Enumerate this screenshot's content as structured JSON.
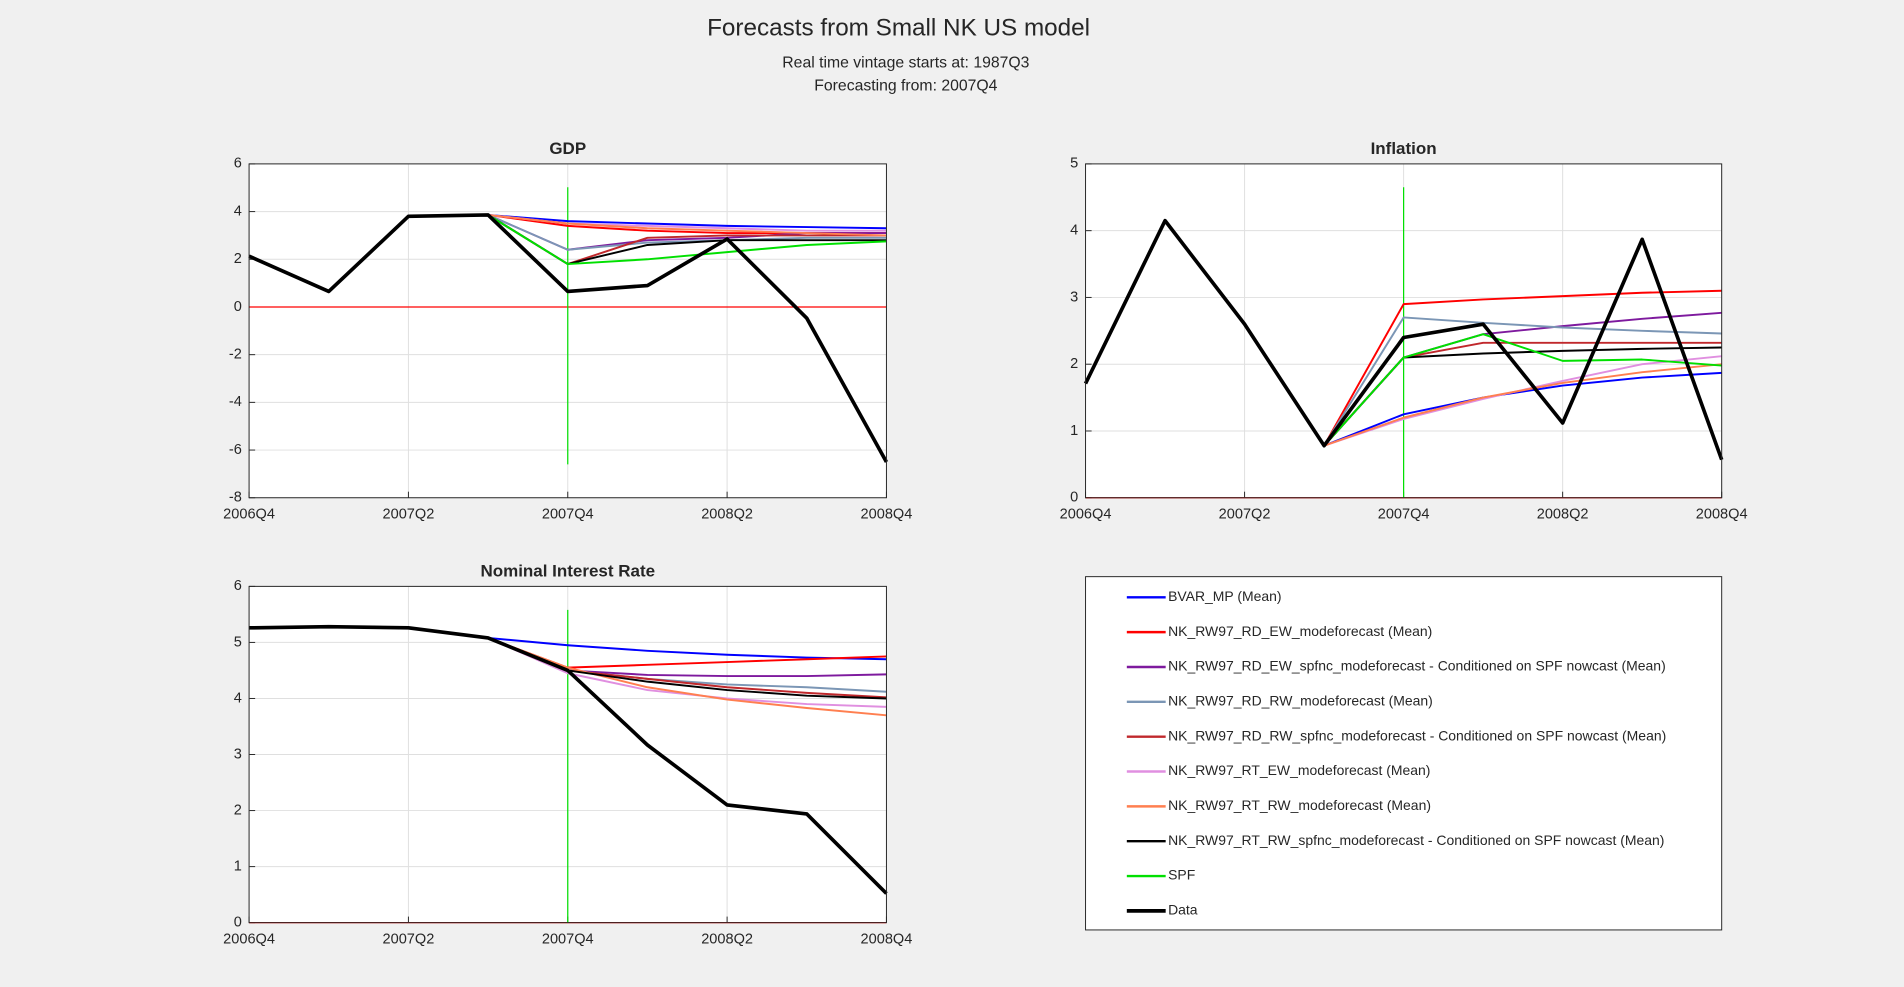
{
  "title": "Forecasts from Small NK US model",
  "subtitle": [
    "Real time vintage starts at: 1987Q3",
    "Forecasting from: 2007Q4"
  ],
  "legend": [
    {
      "name": "BVAR_MP (Mean)",
      "color": "#0000ff"
    },
    {
      "name": "NK_RW97_RD_EW_modeforecast (Mean)",
      "color": "#ff0000"
    },
    {
      "name": "NK_RW97_RD_EW_spfnc_modeforecast - Conditioned on SPF nowcast (Mean)",
      "color": "#7e1a9e"
    },
    {
      "name": "NK_RW97_RD_RW_modeforecast (Mean)",
      "color": "#7b96b5"
    },
    {
      "name": "NK_RW97_RD_RW_spfnc_modeforecast - Conditioned on SPF nowcast (Mean)",
      "color": "#c0282c"
    },
    {
      "name": "NK_RW97_RT_EW_modeforecast (Mean)",
      "color": "#e08fe0"
    },
    {
      "name": "NK_RW97_RT_RW_modeforecast (Mean)",
      "color": "#ff7f50"
    },
    {
      "name": "NK_RW97_RT_RW_spfnc_modeforecast - Conditioned on SPF nowcast (Mean)",
      "color": "#000000"
    },
    {
      "name": "SPF",
      "color": "#00e000"
    },
    {
      "name": "Data",
      "color": "#000000"
    }
  ],
  "chart_data": [
    {
      "type": "line",
      "title": "GDP",
      "categories": [
        "2006Q4",
        null,
        "2007Q2",
        null,
        "2007Q4",
        null,
        "2008Q2",
        null,
        "2008Q4"
      ],
      "ylim": [
        -8,
        6
      ],
      "yticks": [
        -8,
        -6,
        -4,
        -2,
        0,
        2,
        4,
        6
      ],
      "grid": true,
      "series": [
        {
          "values": [
            null,
            null,
            null,
            3.86,
            3.6,
            3.5,
            3.4,
            3.35,
            3.3
          ]
        },
        {
          "values": [
            null,
            null,
            null,
            3.86,
            3.4,
            3.2,
            3.1,
            3.1,
            3.1
          ]
        },
        {
          "values": [
            null,
            null,
            null,
            3.86,
            2.4,
            2.8,
            2.9,
            3.1,
            3.1
          ]
        },
        {
          "values": [
            null,
            null,
            null,
            3.86,
            2.4,
            2.7,
            2.8,
            2.9,
            2.9
          ]
        },
        {
          "values": [
            null,
            null,
            null,
            3.86,
            1.8,
            2.9,
            3.0,
            3.0,
            3.0
          ]
        },
        {
          "values": [
            null,
            null,
            null,
            3.86,
            3.5,
            3.4,
            3.3,
            3.2,
            3.2
          ]
        },
        {
          "values": [
            null,
            null,
            null,
            3.86,
            3.5,
            3.3,
            3.2,
            3.1,
            3.0
          ]
        },
        {
          "values": [
            null,
            null,
            null,
            3.86,
            1.8,
            2.6,
            2.8,
            2.8,
            2.8
          ]
        },
        {
          "values": [
            null,
            null,
            null,
            3.86,
            1.8,
            2.0,
            2.3,
            2.6,
            2.75
          ]
        },
        {
          "values": [
            2.13,
            0.65,
            3.8,
            3.86,
            0.65,
            0.9,
            2.85,
            -0.47,
            -6.5
          ]
        }
      ]
    },
    {
      "type": "line",
      "title": "Inflation",
      "categories": [
        "2006Q4",
        null,
        "2007Q2",
        null,
        "2007Q4",
        null,
        "2008Q2",
        null,
        "2008Q4"
      ],
      "ylim": [
        0,
        5
      ],
      "yticks": [
        0,
        1,
        2,
        3,
        4,
        5
      ],
      "grid": true,
      "series": [
        {
          "values": [
            null,
            null,
            null,
            0.78,
            1.25,
            1.5,
            1.68,
            1.8,
            1.87
          ]
        },
        {
          "values": [
            null,
            null,
            null,
            0.78,
            2.9,
            2.97,
            3.02,
            3.07,
            3.1
          ]
        },
        {
          "values": [
            null,
            null,
            null,
            0.78,
            2.1,
            2.45,
            2.57,
            2.68,
            2.77
          ]
        },
        {
          "values": [
            null,
            null,
            null,
            0.78,
            2.7,
            2.62,
            2.55,
            2.5,
            2.46
          ]
        },
        {
          "values": [
            null,
            null,
            null,
            0.78,
            2.1,
            2.32,
            2.32,
            2.32,
            2.32
          ]
        },
        {
          "values": [
            null,
            null,
            null,
            0.78,
            1.18,
            1.48,
            1.75,
            2.0,
            2.12
          ]
        },
        {
          "values": [
            null,
            null,
            null,
            0.78,
            1.2,
            1.5,
            1.72,
            1.88,
            2.0
          ]
        },
        {
          "values": [
            null,
            null,
            null,
            0.78,
            2.1,
            2.16,
            2.2,
            2.23,
            2.25
          ]
        },
        {
          "values": [
            null,
            null,
            null,
            0.78,
            2.1,
            2.45,
            2.05,
            2.07,
            1.98
          ]
        },
        {
          "values": [
            1.71,
            4.15,
            2.6,
            0.78,
            2.4,
            2.6,
            1.12,
            3.87,
            0.57
          ]
        }
      ]
    },
    {
      "type": "line",
      "title": "Nominal Interest Rate",
      "categories": [
        "2006Q4",
        null,
        "2007Q2",
        null,
        "2007Q4",
        null,
        "2008Q2",
        null,
        "2008Q4"
      ],
      "ylim": [
        0,
        6
      ],
      "yticks": [
        0,
        1,
        2,
        3,
        4,
        5,
        6
      ],
      "grid": true,
      "series": [
        {
          "values": [
            null,
            null,
            null,
            5.08,
            4.95,
            4.85,
            4.78,
            4.73,
            4.7
          ]
        },
        {
          "values": [
            null,
            null,
            null,
            5.08,
            4.55,
            4.6,
            4.65,
            4.7,
            4.75
          ]
        },
        {
          "values": [
            null,
            null,
            null,
            5.08,
            4.5,
            4.42,
            4.4,
            4.4,
            4.43
          ]
        },
        {
          "values": [
            null,
            null,
            null,
            5.08,
            4.5,
            4.35,
            4.25,
            4.2,
            4.12
          ]
        },
        {
          "values": [
            null,
            null,
            null,
            5.08,
            4.5,
            4.35,
            4.2,
            4.1,
            4.02
          ]
        },
        {
          "values": [
            null,
            null,
            null,
            5.08,
            4.45,
            4.15,
            4.0,
            3.9,
            3.85
          ]
        },
        {
          "values": [
            null,
            null,
            null,
            5.08,
            4.55,
            4.2,
            3.98,
            3.83,
            3.7
          ]
        },
        {
          "values": [
            null,
            null,
            null,
            5.08,
            4.5,
            4.3,
            4.15,
            4.05,
            4.0
          ]
        },
        {
          "values": [
            null,
            null,
            null,
            null,
            null,
            null,
            null,
            null,
            null
          ]
        },
        {
          "values": [
            5.26,
            5.28,
            5.26,
            5.08,
            4.5,
            3.17,
            2.1,
            1.94,
            0.52
          ]
        }
      ]
    }
  ]
}
